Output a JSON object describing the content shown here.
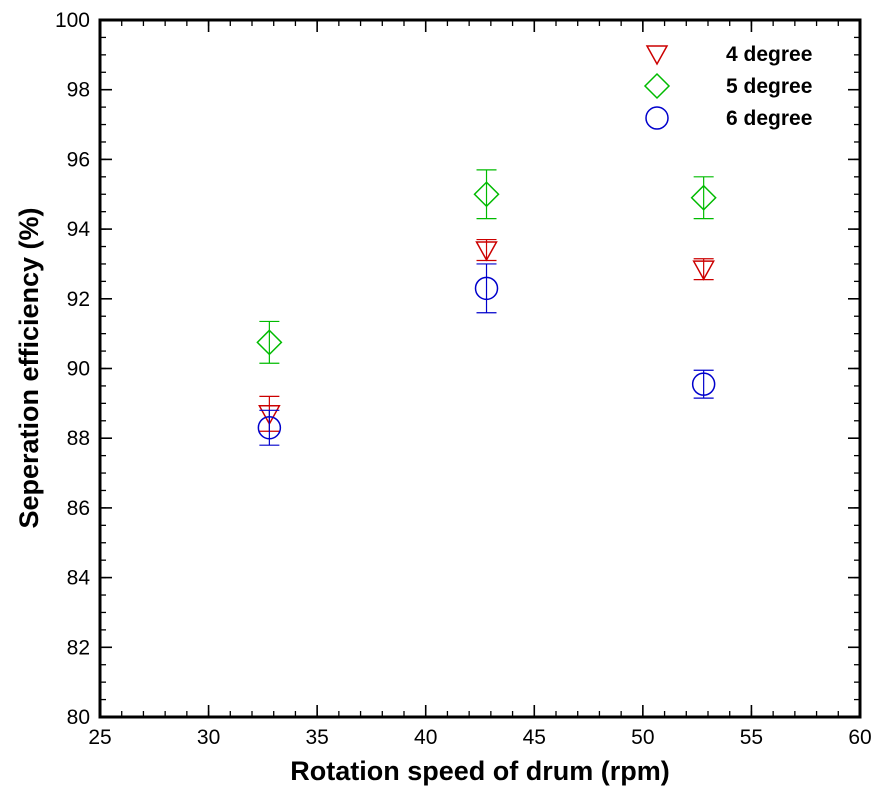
{
  "chart_data": {
    "type": "scatter",
    "title": "",
    "xlabel": "Rotation speed of drum (rpm)",
    "ylabel": "Seperation efficiency (%)",
    "xlim": [
      25,
      60
    ],
    "ylim": [
      80,
      100
    ],
    "xticks": [
      25,
      30,
      35,
      40,
      45,
      50,
      55,
      60
    ],
    "yticks": [
      80,
      82,
      84,
      86,
      88,
      90,
      92,
      94,
      96,
      98,
      100
    ],
    "x_minor_step": 1,
    "y_minor_step": 0.5,
    "grid": false,
    "legend_position": "top-right",
    "series": [
      {
        "name": "4 degree",
        "marker": "triangle-down",
        "color": "#cc0000",
        "points": [
          {
            "x": 32.8,
            "y": 88.7,
            "err": 0.5
          },
          {
            "x": 42.8,
            "y": 93.4,
            "err": 0.3
          },
          {
            "x": 52.8,
            "y": 92.85,
            "err": 0.3
          }
        ]
      },
      {
        "name": "5 degree",
        "marker": "diamond",
        "color": "#00bb00",
        "points": [
          {
            "x": 32.8,
            "y": 90.75,
            "err": 0.6
          },
          {
            "x": 42.8,
            "y": 95.0,
            "err": 0.7
          },
          {
            "x": 52.8,
            "y": 94.9,
            "err": 0.6
          }
        ]
      },
      {
        "name": "6 degree",
        "marker": "circle",
        "color": "#0000cc",
        "points": [
          {
            "x": 32.8,
            "y": 88.3,
            "err": 0.5
          },
          {
            "x": 42.8,
            "y": 92.3,
            "err": 0.7
          },
          {
            "x": 52.8,
            "y": 89.55,
            "err": 0.4
          }
        ]
      }
    ]
  }
}
